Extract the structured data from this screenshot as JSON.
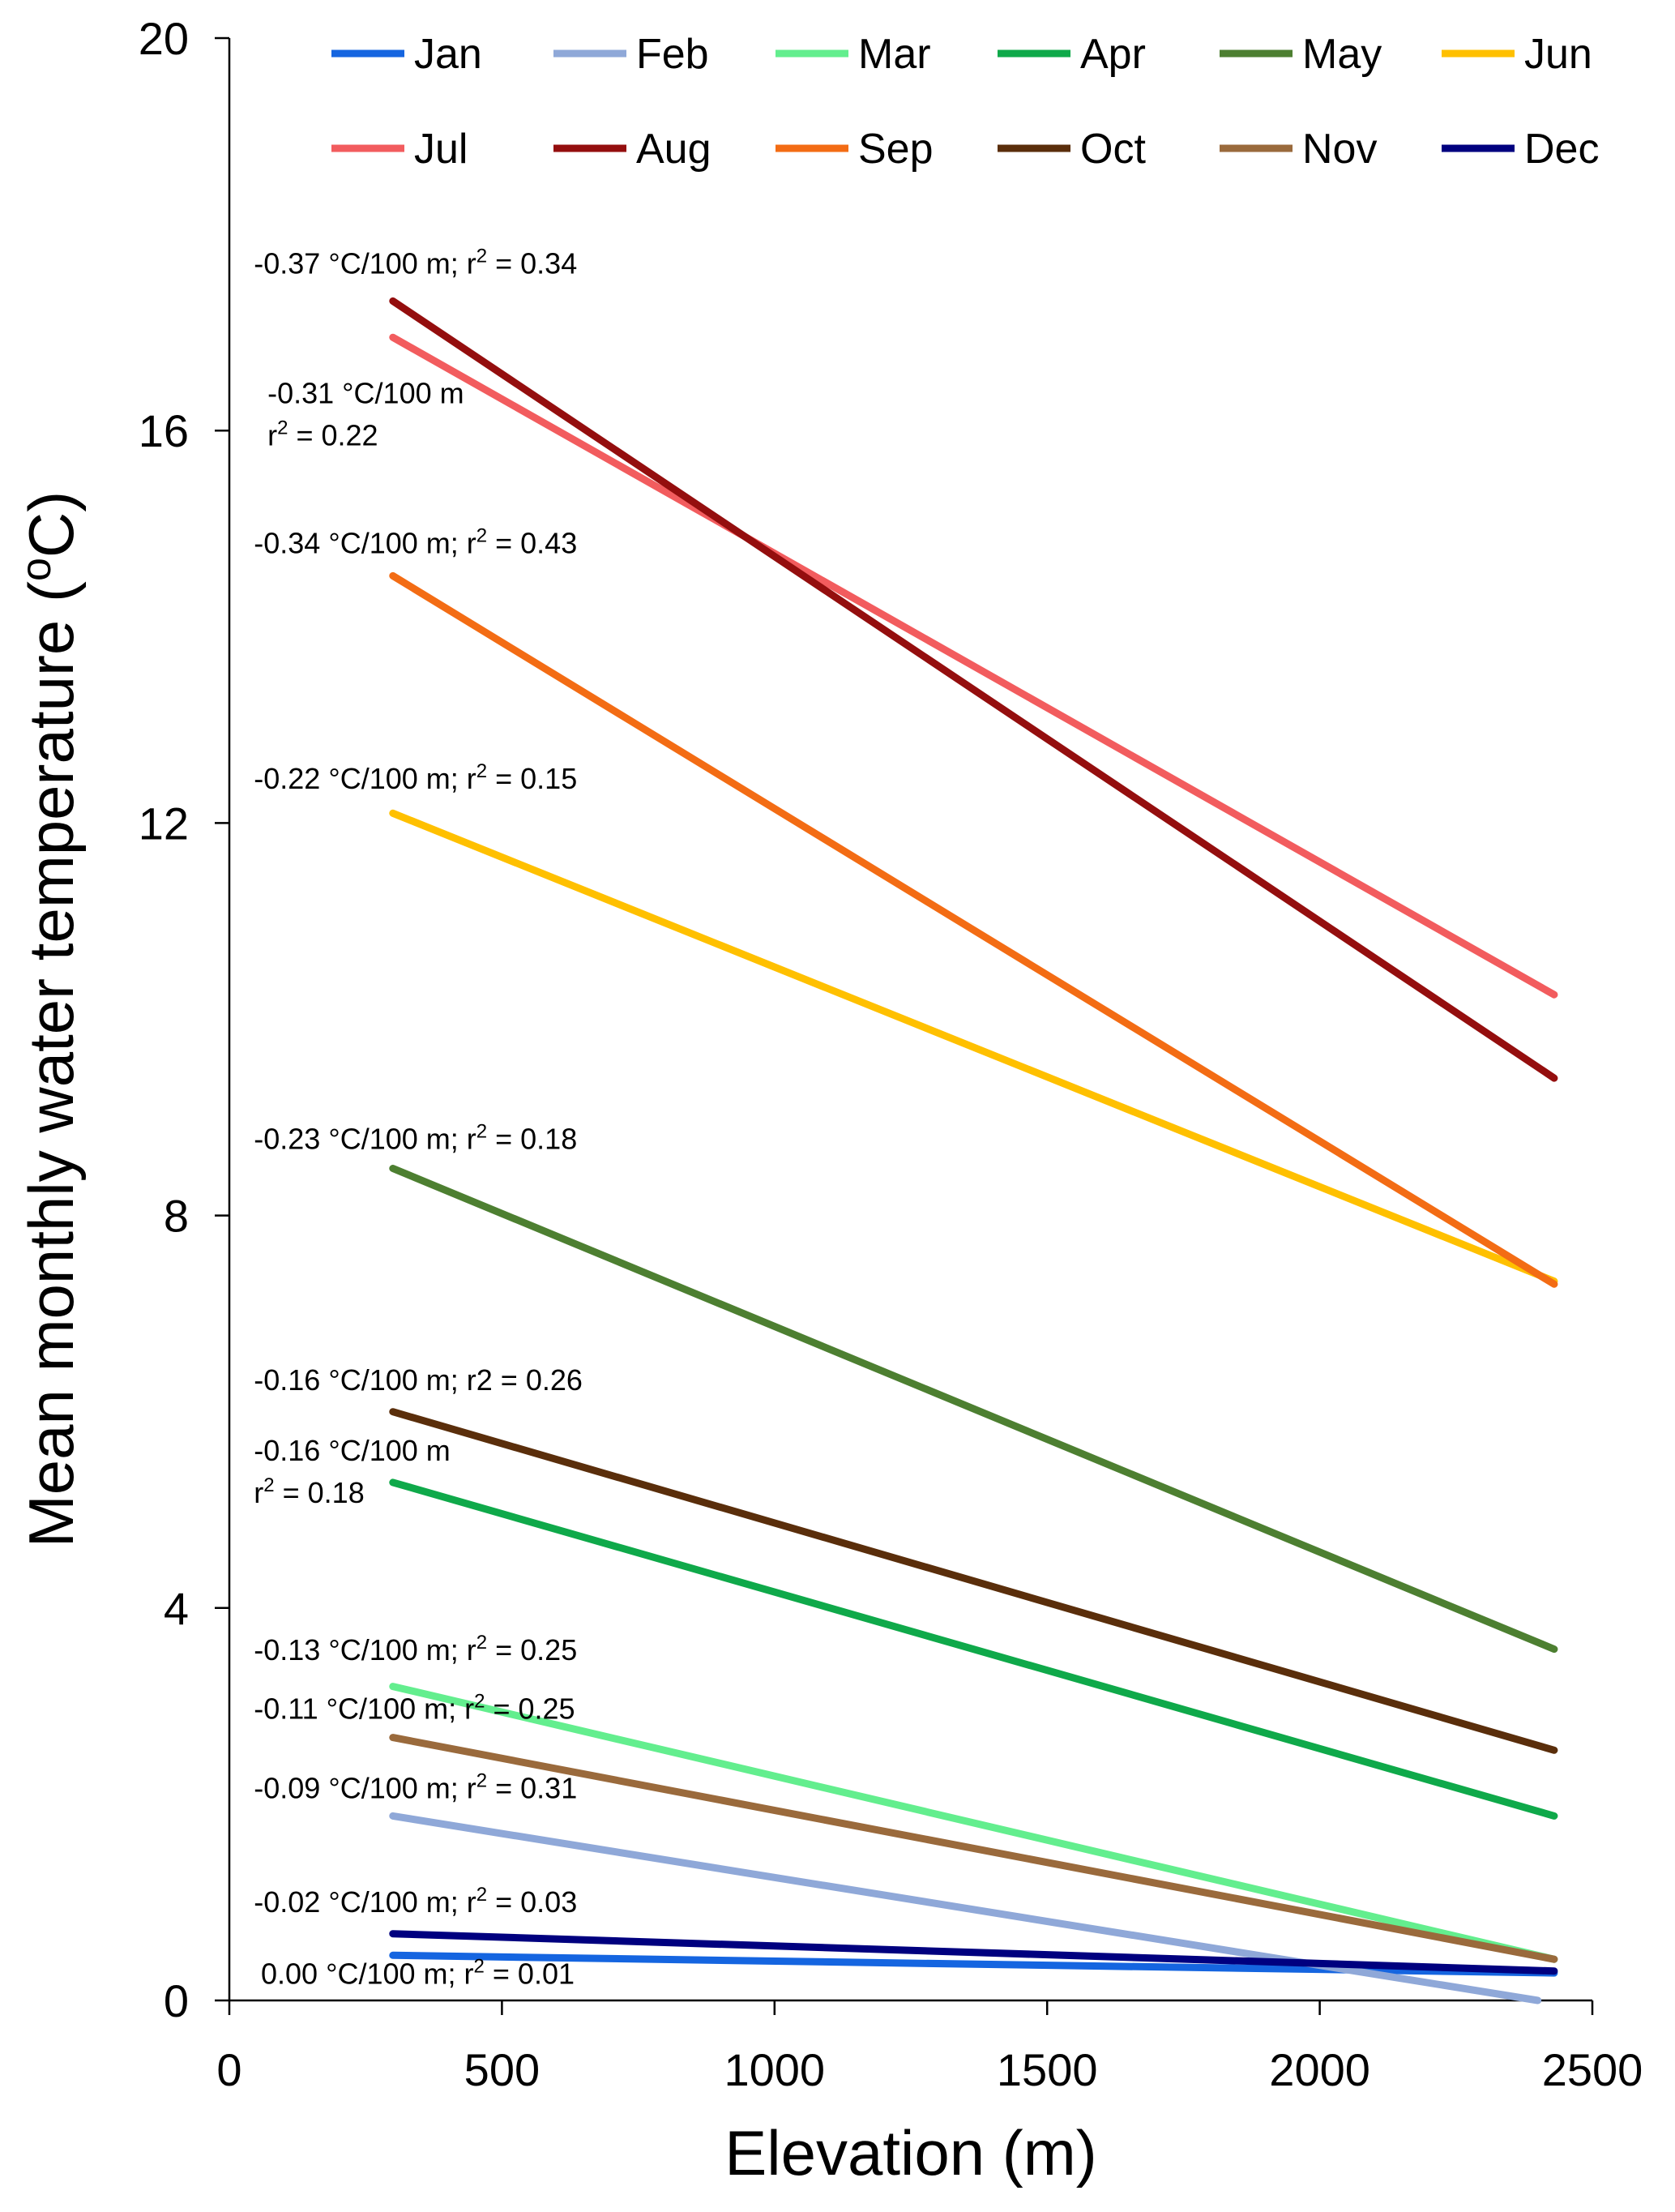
{
  "chart_data": {
    "type": "line",
    "title": "",
    "xlabel": "Elevation (m)",
    "ylabel": "Mean monthly water temperature (°C)",
    "ylabel_parts": {
      "before": "Mean monthly water temperature (",
      "sup": "o",
      "after": "C)"
    },
    "xlim": [
      0,
      2500
    ],
    "ylim": [
      0,
      20
    ],
    "xticks": [
      0,
      500,
      1000,
      1500,
      2000,
      2500
    ],
    "yticks": [
      0,
      4,
      8,
      12,
      16,
      20
    ],
    "grid": false,
    "legend": {
      "position": "top",
      "columns": 6
    },
    "series": [
      {
        "name": "Jan",
        "color": "#1565e0",
        "x": [
          300,
          2430
        ],
        "y": [
          0.46,
          0.28
        ]
      },
      {
        "name": "Feb",
        "color": "#8fa8d8",
        "x": [
          300,
          2400
        ],
        "y": [
          1.88,
          0.0
        ]
      },
      {
        "name": "Mar",
        "color": "#63ee8e",
        "x": [
          300,
          2430
        ],
        "y": [
          3.2,
          0.42
        ]
      },
      {
        "name": "Apr",
        "color": "#0fa94a",
        "x": [
          300,
          2430
        ],
        "y": [
          5.28,
          1.88
        ]
      },
      {
        "name": "May",
        "color": "#4d7f31",
        "x": [
          300,
          2430
        ],
        "y": [
          8.48,
          3.58
        ]
      },
      {
        "name": "Jun",
        "color": "#ffc000",
        "x": [
          300,
          2430
        ],
        "y": [
          12.1,
          7.33
        ]
      },
      {
        "name": "Jul",
        "color": "#f25c5e",
        "x": [
          300,
          2430
        ],
        "y": [
          16.95,
          10.25
        ]
      },
      {
        "name": "Aug",
        "color": "#940e0e",
        "x": [
          300,
          2430
        ],
        "y": [
          17.32,
          9.4
        ]
      },
      {
        "name": "Sep",
        "color": "#f36c14",
        "x": [
          300,
          2430
        ],
        "y": [
          14.52,
          7.3
        ]
      },
      {
        "name": "Oct",
        "color": "#5a2e0b",
        "x": [
          300,
          2430
        ],
        "y": [
          6.0,
          2.55
        ]
      },
      {
        "name": "Nov",
        "color": "#9a6a3c",
        "x": [
          300,
          2430
        ],
        "y": [
          2.68,
          0.42
        ]
      },
      {
        "name": "Dec",
        "color": "#00007f",
        "x": [
          300,
          2430
        ],
        "y": [
          0.68,
          0.3
        ]
      }
    ],
    "annotations": [
      {
        "id": "aug",
        "x": 45,
        "y": 17.6,
        "lines": [
          [
            {
              "t": "-0.37 °C/100 m; r"
            },
            {
              "t": "2",
              "sup": true
            },
            {
              "t": " = 0.34"
            }
          ]
        ]
      },
      {
        "id": "jul",
        "x": 70,
        "y": 16.28,
        "lines": [
          [
            {
              "t": "-0.31 °C/100 m"
            }
          ],
          [
            {
              "t": "r"
            },
            {
              "t": "2",
              "sup": true
            },
            {
              "t": " = 0.22"
            }
          ]
        ]
      },
      {
        "id": "sep",
        "x": 45,
        "y": 14.75,
        "lines": [
          [
            {
              "t": "-0.34 °C/100 m; r"
            },
            {
              "t": "2",
              "sup": true
            },
            {
              "t": " = 0.43"
            }
          ]
        ]
      },
      {
        "id": "jun",
        "x": 45,
        "y": 12.35,
        "lines": [
          [
            {
              "t": "-0.22 °C/100 m; r"
            },
            {
              "t": "2",
              "sup": true
            },
            {
              "t": " = 0.15"
            }
          ]
        ]
      },
      {
        "id": "may",
        "x": 45,
        "y": 8.68,
        "lines": [
          [
            {
              "t": "-0.23 °C/100 m; r"
            },
            {
              "t": "2",
              "sup": true
            },
            {
              "t": " = 0.18"
            }
          ]
        ]
      },
      {
        "id": "oct",
        "x": 45,
        "y": 6.22,
        "lines": [
          [
            {
              "t": "-0.16 °C/100 m; r2 = 0.26"
            }
          ]
        ]
      },
      {
        "id": "apr",
        "x": 45,
        "y": 5.5,
        "lines": [
          [
            {
              "t": "-0.16 °C/100 m"
            }
          ],
          [
            {
              "t": "r"
            },
            {
              "t": "2",
              "sup": true
            },
            {
              "t": " = 0.18"
            }
          ]
        ]
      },
      {
        "id": "mar",
        "x": 45,
        "y": 3.47,
        "lines": [
          [
            {
              "t": "-0.13 °C/100 m; r"
            },
            {
              "t": "2",
              "sup": true
            },
            {
              "t": " = 0.25"
            }
          ]
        ]
      },
      {
        "id": "nov",
        "x": 45,
        "y": 2.87,
        "lines": [
          [
            {
              "t": "-0.11 °C/100 m; r"
            },
            {
              "t": "2",
              "sup": true
            },
            {
              "t": " = 0.25"
            }
          ]
        ]
      },
      {
        "id": "feb",
        "x": 45,
        "y": 2.06,
        "lines": [
          [
            {
              "t": "-0.09 °C/100 m; r"
            },
            {
              "t": "2",
              "sup": true
            },
            {
              "t": " = 0.31"
            }
          ]
        ]
      },
      {
        "id": "dec",
        "x": 45,
        "y": 0.9,
        "lines": [
          [
            {
              "t": "-0.02 °C/100 m; r"
            },
            {
              "t": "2",
              "sup": true
            },
            {
              "t": " = 0.03"
            }
          ]
        ]
      },
      {
        "id": "jan",
        "x": 58,
        "y": 0.17,
        "lines": [
          [
            {
              "t": "0.00 °C/100 m; r"
            },
            {
              "t": "2",
              "sup": true
            },
            {
              "t": " = 0.01"
            }
          ]
        ]
      }
    ]
  }
}
